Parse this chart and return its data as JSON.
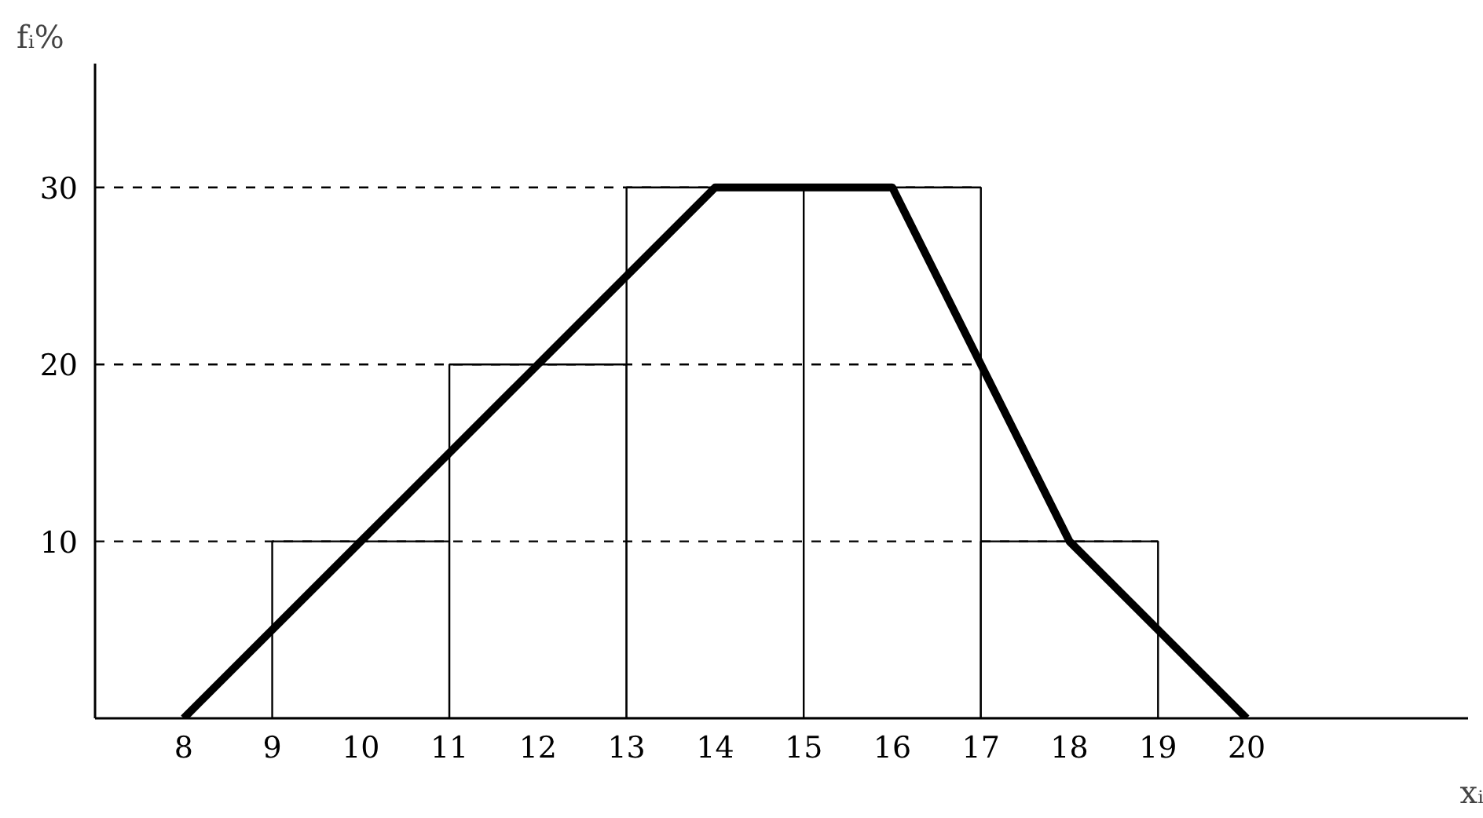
{
  "chart_data": {
    "type": "histogram",
    "xlabel": "xᵢ",
    "ylabel": "fᵢ%",
    "series": [
      {
        "color": "#ffffff",
        "bins": [
          9,
          11,
          13,
          15,
          17,
          19
        ],
        "values": [
          10,
          20,
          30,
          30,
          10
        ]
      },
      {
        "type": "line",
        "color": "#000000",
        "x": [
          8,
          10,
          12,
          14,
          16,
          18,
          20
        ],
        "values": [
          0,
          10,
          20,
          30,
          30,
          10,
          0
        ]
      }
    ],
    "xlim": [
      7,
      22.5
    ],
    "ylim": [
      0,
      37
    ],
    "xticks": [
      8,
      9,
      10,
      11,
      12,
      13,
      14,
      15,
      16,
      17,
      18,
      19,
      20
    ],
    "yticks": [
      10,
      20,
      30
    ],
    "ref_lines": [
      {
        "axis": "y",
        "value": 10,
        "line_style": "dashed",
        "color": "#000000"
      },
      {
        "axis": "y",
        "value": 20,
        "line_style": "dashed",
        "color": "#000000"
      },
      {
        "axis": "y",
        "value": 30,
        "line_style": "dashed",
        "color": "#000000"
      }
    ],
    "grid": false,
    "line_style": "solid",
    "marker": "none"
  }
}
